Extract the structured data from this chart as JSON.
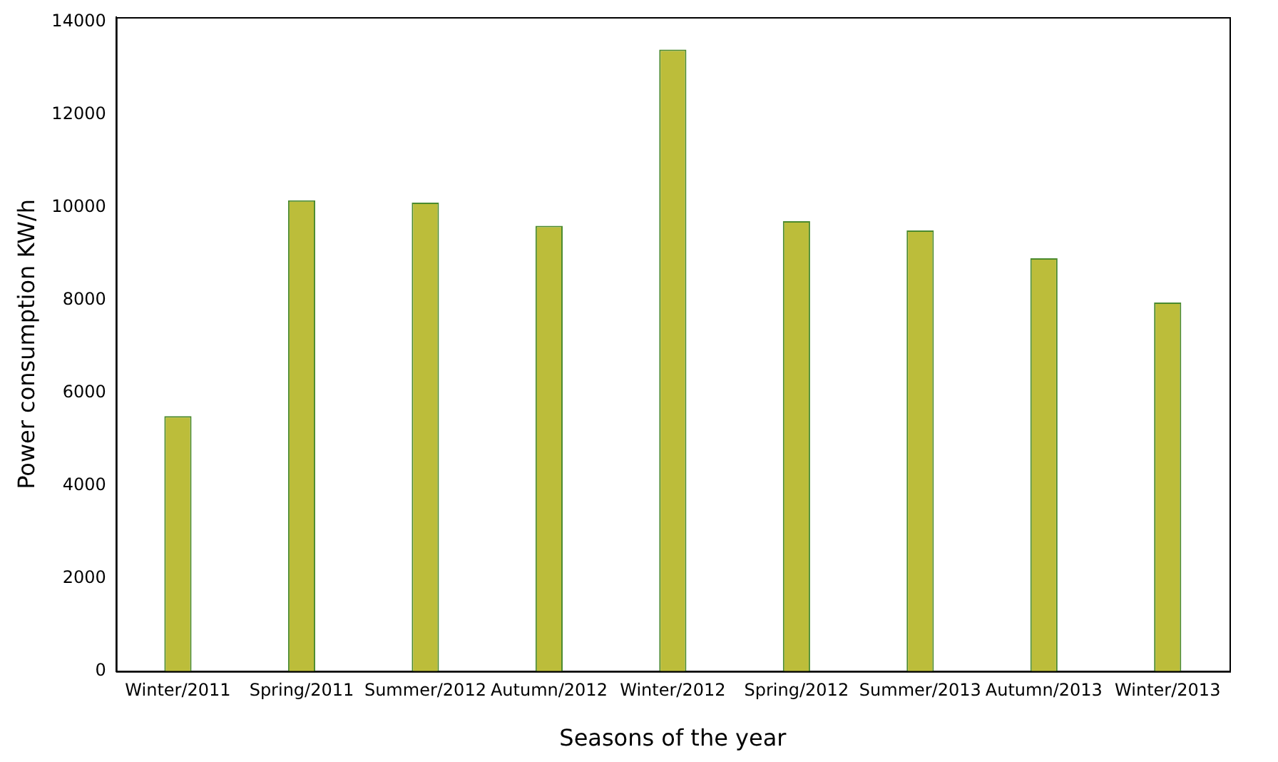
{
  "chart_data": {
    "type": "bar",
    "xlabel": "Seasons of the year",
    "ylabel": "Power consumption KW/h",
    "categories": [
      "Winter/2011",
      "Spring/2011",
      "Summer/2012",
      "Autumn/2012",
      "Winter/2012",
      "Spring/2012",
      "Summer/2013",
      "Autumn/2013",
      "Winter/2013"
    ],
    "values": [
      5500,
      10150,
      10100,
      9600,
      13400,
      9700,
      9500,
      8900,
      7950
    ],
    "color": "#bcbd3a",
    "ylim": [
      0,
      14100
    ],
    "yticks": [
      0,
      2000,
      4000,
      6000,
      8000,
      10000,
      12000,
      14000
    ],
    "grid": false,
    "legend": false
  }
}
